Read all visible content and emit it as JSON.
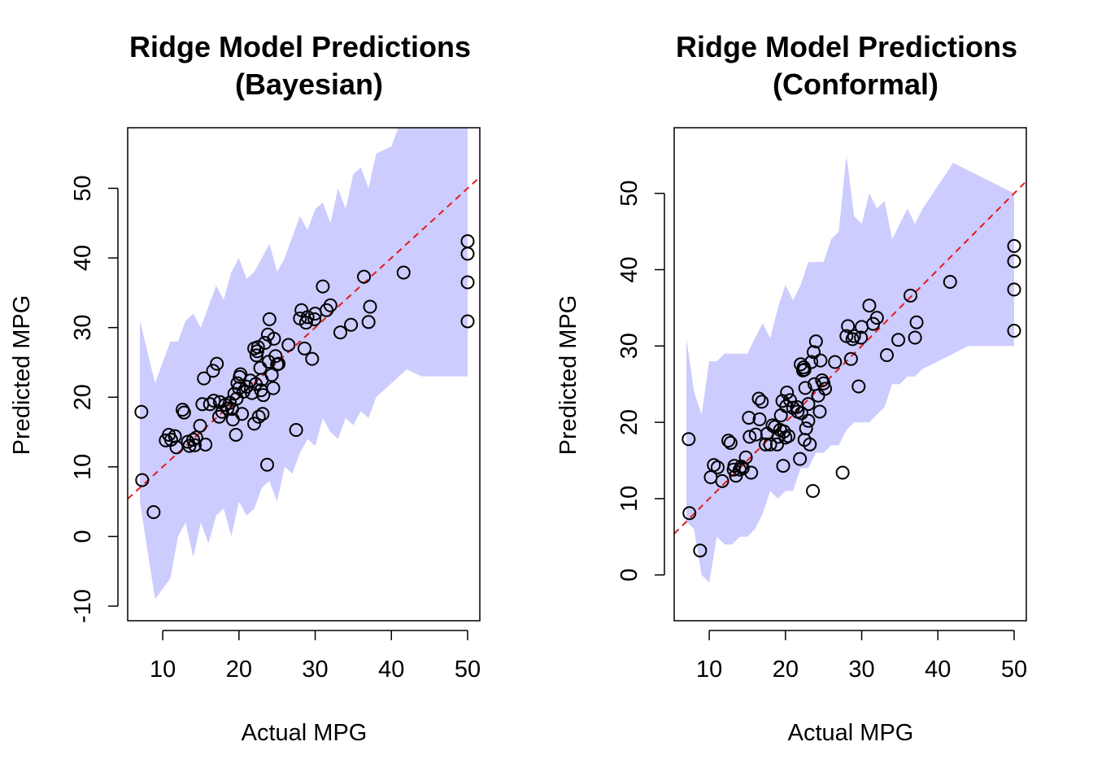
{
  "chart_data": [
    {
      "type": "scatter",
      "title": [
        "Ridge Model Predictions",
        "(Bayesian)"
      ],
      "xlabel": "Actual MPG",
      "ylabel": "Predicted MPG",
      "xlim": [
        5.4,
        51.6
      ],
      "ylim": [
        -12.1,
        58.7
      ],
      "xticks": [
        10,
        20,
        30,
        40,
        50
      ],
      "yticks": [
        -10,
        0,
        10,
        20,
        30,
        40,
        50
      ],
      "reference_line": {
        "slope": 1,
        "intercept": 0,
        "color": "#e41a1c",
        "style": "dashed"
      },
      "band_color": "#ccccff",
      "band": {
        "x": [
          7,
          9,
          11,
          12,
          13,
          14,
          15,
          16,
          17,
          18,
          19,
          20,
          21,
          22,
          23,
          24,
          25,
          26,
          27,
          28,
          29,
          30,
          31,
          32,
          33,
          34,
          35,
          36,
          37,
          38,
          40,
          42,
          44,
          46,
          48,
          50
        ],
        "upper": [
          31,
          22,
          28,
          28,
          31,
          32,
          30,
          33,
          36,
          34,
          38,
          40,
          37,
          38,
          40,
          42,
          38,
          40,
          43,
          46,
          44,
          47,
          48,
          45,
          50,
          47,
          52,
          53,
          50,
          55,
          56,
          62,
          61,
          61,
          61,
          60
        ],
        "lower": [
          5,
          -9,
          -6,
          0,
          2,
          -3,
          2,
          -1,
          3,
          4,
          0,
          5,
          3,
          4,
          7,
          8,
          5,
          10,
          9,
          12,
          14,
          13,
          17,
          15,
          14,
          17,
          16,
          18,
          17,
          20,
          22,
          24,
          23,
          23,
          23,
          23
        ]
      },
      "points": [
        [
          7.2,
          17.9
        ],
        [
          7.3,
          8.1
        ],
        [
          8.8,
          3.5
        ],
        [
          10.4,
          13.8
        ],
        [
          10.8,
          14.6
        ],
        [
          11.1,
          13.9
        ],
        [
          11.6,
          14.4
        ],
        [
          11.8,
          12.8
        ],
        [
          12.6,
          18.2
        ],
        [
          12.8,
          17.8
        ],
        [
          13.3,
          13.6
        ],
        [
          13.5,
          13.0
        ],
        [
          14.0,
          13.9
        ],
        [
          14.2,
          13.1
        ],
        [
          14.4,
          14.2
        ],
        [
          14.9,
          15.9
        ],
        [
          15.2,
          19.0
        ],
        [
          15.4,
          22.7
        ],
        [
          15.6,
          13.2
        ],
        [
          16.2,
          19.0
        ],
        [
          16.6,
          23.8
        ],
        [
          16.7,
          19.5
        ],
        [
          17.1,
          24.8
        ],
        [
          17.4,
          17.2
        ],
        [
          17.5,
          19.3
        ],
        [
          17.8,
          17.9
        ],
        [
          18.2,
          18.9
        ],
        [
          18.5,
          18.4
        ],
        [
          18.8,
          19.2
        ],
        [
          19.1,
          18.3
        ],
        [
          19.2,
          16.8
        ],
        [
          19.4,
          20.5
        ],
        [
          19.6,
          14.6
        ],
        [
          19.7,
          19.8
        ],
        [
          19.8,
          22.0
        ],
        [
          20.0,
          21.3
        ],
        [
          20.1,
          22.9
        ],
        [
          20.2,
          23.3
        ],
        [
          20.4,
          17.6
        ],
        [
          20.6,
          20.8
        ],
        [
          21.0,
          21.5
        ],
        [
          21.5,
          22.4
        ],
        [
          21.7,
          20.6
        ],
        [
          22.0,
          16.2
        ],
        [
          22.0,
          27.0
        ],
        [
          22.2,
          21.9
        ],
        [
          22.3,
          26.0
        ],
        [
          22.4,
          26.6
        ],
        [
          22.5,
          27.2
        ],
        [
          22.6,
          17.2
        ],
        [
          22.8,
          24.2
        ],
        [
          22.9,
          21.0
        ],
        [
          23.0,
          22.5
        ],
        [
          23.1,
          17.6
        ],
        [
          23.2,
          20.3
        ],
        [
          23.4,
          27.8
        ],
        [
          23.7,
          10.3
        ],
        [
          23.8,
          29.0
        ],
        [
          23.9,
          25.1
        ],
        [
          24.0,
          31.2
        ],
        [
          24.3,
          23.2
        ],
        [
          24.5,
          21.3
        ],
        [
          24.6,
          28.4
        ],
        [
          24.8,
          25.9
        ],
        [
          25.0,
          24.7
        ],
        [
          25.2,
          24.8
        ],
        [
          26.5,
          27.5
        ],
        [
          27.5,
          15.3
        ],
        [
          28.0,
          31.3
        ],
        [
          28.2,
          32.5
        ],
        [
          28.6,
          27.0
        ],
        [
          28.8,
          30.7
        ],
        [
          29.0,
          31.5
        ],
        [
          29.6,
          25.5
        ],
        [
          29.9,
          31.2
        ],
        [
          30.0,
          32.0
        ],
        [
          31.0,
          35.9
        ],
        [
          31.5,
          32.5
        ],
        [
          32.0,
          33.2
        ],
        [
          33.3,
          29.3
        ],
        [
          34.7,
          30.4
        ],
        [
          36.4,
          37.3
        ],
        [
          37.0,
          30.8
        ],
        [
          37.2,
          33.0
        ],
        [
          41.6,
          37.9
        ],
        [
          50.0,
          42.4
        ],
        [
          50.0,
          40.6
        ],
        [
          50.0,
          36.5
        ],
        [
          50.0,
          30.9
        ]
      ]
    },
    {
      "type": "scatter",
      "title": [
        "Ridge Model Predictions",
        "(Conformal)"
      ],
      "xlabel": "Actual MPG",
      "ylabel": "Predicted MPG",
      "xlim": [
        5.4,
        51.6
      ],
      "ylim": [
        -6.0,
        58.6
      ],
      "xticks": [
        10,
        20,
        30,
        40,
        50
      ],
      "yticks": [
        0,
        10,
        20,
        30,
        40,
        50
      ],
      "reference_line": {
        "slope": 1,
        "intercept": 0,
        "color": "#e41a1c",
        "style": "dashed"
      },
      "band_color": "#ccccff",
      "band": {
        "x": [
          7,
          8,
          9,
          10,
          11,
          12,
          13,
          14,
          15,
          16,
          17,
          18,
          19,
          20,
          21,
          22,
          23,
          24,
          25,
          26,
          27,
          28,
          29,
          30,
          31,
          32,
          33,
          34,
          35,
          36,
          37,
          38,
          40,
          42,
          44,
          46,
          48,
          50
        ],
        "upper": [
          31,
          24,
          21,
          28,
          28,
          29,
          29,
          29,
          29,
          31,
          33,
          31,
          35,
          38,
          36,
          38,
          41,
          41,
          41,
          44,
          45,
          55,
          47,
          46,
          50,
          48,
          49,
          44,
          46,
          48,
          46,
          48,
          51,
          54,
          53,
          52,
          51,
          50
        ],
        "lower": [
          7,
          6,
          0,
          -1,
          5,
          4,
          4,
          5,
          5,
          6,
          8,
          11,
          10,
          11,
          11,
          14,
          14,
          16,
          16,
          17,
          17,
          19,
          20,
          20,
          20,
          21,
          22,
          25,
          25,
          26,
          26,
          27,
          28,
          29,
          30,
          30,
          30,
          30
        ]
      },
      "points": [
        [
          7.3,
          17.8
        ],
        [
          7.4,
          8.1
        ],
        [
          8.8,
          3.2
        ],
        [
          10.2,
          12.8
        ],
        [
          10.6,
          14.4
        ],
        [
          11.1,
          14.1
        ],
        [
          11.7,
          12.3
        ],
        [
          12.5,
          17.6
        ],
        [
          12.8,
          17.3
        ],
        [
          13.2,
          13.8
        ],
        [
          13.3,
          14.3
        ],
        [
          13.5,
          13.0
        ],
        [
          14.0,
          13.8
        ],
        [
          14.2,
          14.2
        ],
        [
          14.4,
          14.0
        ],
        [
          14.8,
          15.4
        ],
        [
          15.2,
          20.6
        ],
        [
          15.3,
          18.1
        ],
        [
          15.5,
          13.4
        ],
        [
          16.1,
          18.4
        ],
        [
          16.5,
          23.1
        ],
        [
          16.6,
          20.4
        ],
        [
          16.9,
          22.7
        ],
        [
          17.4,
          17.1
        ],
        [
          17.6,
          18.5
        ],
        [
          18.0,
          17.1
        ],
        [
          18.3,
          19.6
        ],
        [
          18.6,
          19.4
        ],
        [
          18.9,
          17.1
        ],
        [
          19.1,
          18.1
        ],
        [
          19.3,
          19.0
        ],
        [
          19.4,
          20.9
        ],
        [
          19.6,
          22.8
        ],
        [
          19.7,
          14.3
        ],
        [
          19.8,
          18.8
        ],
        [
          20.0,
          18.0
        ],
        [
          20.1,
          22.1
        ],
        [
          20.2,
          23.9
        ],
        [
          20.4,
          18.2
        ],
        [
          20.6,
          22.9
        ],
        [
          21.0,
          21.9
        ],
        [
          21.5,
          22.0
        ],
        [
          21.6,
          21.4
        ],
        [
          21.9,
          15.2
        ],
        [
          22.0,
          27.6
        ],
        [
          22.1,
          21.2
        ],
        [
          22.3,
          26.8
        ],
        [
          22.4,
          27.2
        ],
        [
          22.5,
          26.9
        ],
        [
          22.5,
          17.7
        ],
        [
          22.6,
          24.5
        ],
        [
          22.7,
          19.2
        ],
        [
          23.0,
          22.4
        ],
        [
          23.0,
          20.2
        ],
        [
          23.2,
          17.1
        ],
        [
          23.4,
          27.9
        ],
        [
          23.6,
          11.0
        ],
        [
          23.7,
          29.2
        ],
        [
          23.8,
          25.0
        ],
        [
          24.0,
          30.6
        ],
        [
          24.3,
          23.5
        ],
        [
          24.5,
          21.4
        ],
        [
          24.6,
          28.1
        ],
        [
          24.8,
          25.5
        ],
        [
          25.0,
          25.1
        ],
        [
          25.2,
          24.4
        ],
        [
          26.5,
          27.9
        ],
        [
          27.5,
          13.4
        ],
        [
          28.0,
          31.3
        ],
        [
          28.2,
          32.6
        ],
        [
          28.6,
          28.3
        ],
        [
          28.8,
          30.9
        ],
        [
          29.0,
          31.3
        ],
        [
          29.6,
          24.7
        ],
        [
          29.9,
          31.1
        ],
        [
          30.0,
          32.5
        ],
        [
          31.0,
          35.3
        ],
        [
          31.5,
          32.9
        ],
        [
          32.0,
          33.7
        ],
        [
          33.3,
          28.8
        ],
        [
          34.8,
          30.8
        ],
        [
          36.4,
          36.6
        ],
        [
          37.0,
          31.1
        ],
        [
          37.2,
          33.1
        ],
        [
          41.6,
          38.4
        ],
        [
          50.0,
          43.1
        ],
        [
          50.0,
          41.1
        ],
        [
          50.0,
          37.4
        ],
        [
          50.0,
          32.0
        ]
      ]
    }
  ]
}
